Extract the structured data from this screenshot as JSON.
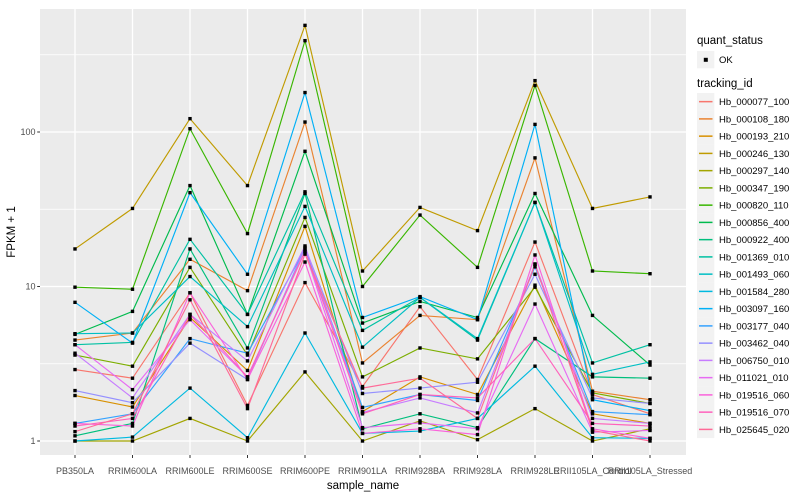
{
  "axes": {
    "x_title": "sample_name",
    "y_title": "FPKM + 1",
    "y_tick_labels": [
      "1",
      "10",
      "100"
    ]
  },
  "legend": {
    "quant_status_title": "quant_status",
    "ok_label": "OK",
    "tracking_id_title": "tracking_id"
  },
  "colors": {
    "panel_bg": "#EBEBEB",
    "grid": "#FFFFFF",
    "legend_key_bg": "#F2F2F2",
    "point": "#000000",
    "tick": "#333333",
    "tick_label": "#4D4D4D"
  },
  "chart_data": {
    "type": "line",
    "title": "",
    "xlabel": "sample_name",
    "ylabel": "FPKM + 1",
    "y_scale": "log10",
    "y_ticks": [
      1,
      10,
      100
    ],
    "y_minor_ticks": [
      3.162,
      31.62,
      316.2
    ],
    "ylim": [
      1,
      550
    ],
    "grid": true,
    "legend_position": "right",
    "point_shape": "small black square (quant_status OK)",
    "categories": [
      "PB350LA",
      "RRIM600LA",
      "RRIM600LE",
      "RRIM600SE",
      "RRIM600PE",
      "RRIM901LA",
      "RRIM928BA",
      "RRIM928LA",
      "RRIM928LE",
      "RRII105LA_Control",
      "RRII105LA_Stressed"
    ],
    "series": [
      {
        "name": "Hb_000077_100",
        "color": "#F8766D",
        "values": [
          2.9,
          2.55,
          9.1,
          1.7,
          10.6,
          2.25,
          7.4,
          2.5,
          19.4,
          2.0,
          1.5
        ]
      },
      {
        "name": "Hb_000108_180",
        "color": "#EA8331",
        "values": [
          4.5,
          5.0,
          15.0,
          9.4,
          116,
          3.2,
          6.5,
          6.1,
          68,
          2.1,
          1.85
        ]
      },
      {
        "name": "Hb_000193_210",
        "color": "#D89000",
        "values": [
          1.97,
          1.66,
          6.3,
          2.86,
          24.5,
          1.55,
          2.6,
          2.0,
          10.2,
          1.5,
          1.3
        ]
      },
      {
        "name": "Hb_000246_130",
        "color": "#C09B00",
        "values": [
          17.5,
          32,
          122,
          45,
          490,
          12.6,
          32.5,
          23,
          215,
          32,
          38
        ]
      },
      {
        "name": "Hb_000297_140",
        "color": "#A3A500",
        "values": [
          1.0,
          1.0,
          1.4,
          1.0,
          2.8,
          1.0,
          1.35,
          1.02,
          1.62,
          1.0,
          1.2
        ]
      },
      {
        "name": "Hb_000347_190",
        "color": "#7CAE00",
        "values": [
          3.6,
          3.05,
          13.3,
          3.6,
          28,
          2.6,
          4.0,
          3.4,
          9.9,
          2.05,
          1.75
        ]
      },
      {
        "name": "Hb_000820_110",
        "color": "#39B600",
        "values": [
          9.9,
          9.6,
          105,
          22,
          390,
          10.0,
          29,
          13.3,
          200,
          12.6,
          12.1
        ]
      },
      {
        "name": "Hb_000856_400",
        "color": "#00BB4E",
        "values": [
          4.9,
          6.9,
          45,
          6.6,
          75,
          5.8,
          8.0,
          6.3,
          40,
          6.5,
          3.1
        ]
      },
      {
        "name": "Hb_000922_400",
        "color": "#00BF7D",
        "values": [
          1.08,
          1.3,
          17.5,
          4.0,
          40,
          1.2,
          1.5,
          1.22,
          4.6,
          2.6,
          2.55
        ]
      },
      {
        "name": "Hb_001369_010",
        "color": "#00C1A3",
        "values": [
          4.2,
          4.35,
          20.2,
          6.6,
          41,
          5.2,
          8.5,
          4.5,
          35,
          3.2,
          4.2
        ]
      },
      {
        "name": "Hb_001493_060",
        "color": "#00BFC4",
        "values": [
          4.95,
          5.0,
          11.6,
          5.5,
          33,
          4.05,
          8.5,
          4.6,
          35,
          2.7,
          3.25
        ]
      },
      {
        "name": "Hb_001584_280",
        "color": "#00BAE0",
        "values": [
          1.0,
          1.06,
          2.2,
          1.05,
          5.0,
          1.12,
          1.16,
          1.4,
          3.05,
          1.05,
          1.04
        ]
      },
      {
        "name": "Hb_003097_160",
        "color": "#00B0F6",
        "values": [
          7.9,
          4.3,
          40.5,
          12.0,
          180,
          6.3,
          8.6,
          6.1,
          112,
          1.85,
          1.57
        ]
      },
      {
        "name": "Hb_003177_040",
        "color": "#35A2FF",
        "values": [
          1.3,
          1.5,
          4.6,
          3.7,
          17.5,
          1.65,
          2.0,
          1.83,
          13.4,
          1.55,
          1.48
        ]
      },
      {
        "name": "Hb_003462_040",
        "color": "#9590FF",
        "values": [
          2.12,
          1.77,
          4.3,
          2.5,
          17.9,
          2.03,
          2.2,
          2.4,
          12.0,
          1.9,
          1.75
        ]
      },
      {
        "name": "Hb_006750_010",
        "color": "#C77CFF",
        "values": [
          3.7,
          1.9,
          6.6,
          3.3,
          18.3,
          1.53,
          1.9,
          1.52,
          14.0,
          1.4,
          1.3
        ]
      },
      {
        "name": "Hb_011021_010",
        "color": "#E76BF3",
        "values": [
          4.2,
          2.15,
          6.1,
          2.6,
          16.8,
          1.22,
          1.31,
          1.2,
          7.7,
          1.14,
          1.17
        ]
      },
      {
        "name": "Hb_019516_060",
        "color": "#FA62DB",
        "values": [
          1.3,
          1.25,
          9.1,
          2.5,
          14.4,
          1.12,
          1.2,
          1.1,
          16.0,
          1.2,
          1.04
        ]
      },
      {
        "name": "Hb_019516_070",
        "color": "#FF62BC",
        "values": [
          1.25,
          1.4,
          6.6,
          2.6,
          17.0,
          1.5,
          2.0,
          1.9,
          4.6,
          1.3,
          1.25
        ]
      },
      {
        "name": "Hb_025645_020",
        "color": "#FF6A98",
        "values": [
          1.15,
          1.5,
          8.2,
          1.62,
          16.2,
          2.2,
          2.55,
          1.4,
          13.9,
          1.17,
          1.0
        ]
      }
    ],
    "quant_status": {
      "title": "quant_status",
      "items": [
        "OK"
      ]
    }
  }
}
